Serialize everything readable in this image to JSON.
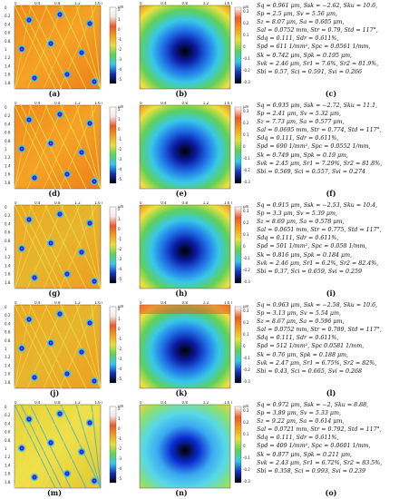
{
  "panels": [
    {
      "left_caption": "(a)",
      "mid_caption": "(b)",
      "right_caption": "(c)",
      "params": [
        "Sq = 0.961 μm, Ssk = −2.62, Sku = 10.6,",
        "Sp = 2.5 μm, Sv = 5.56 μm,",
        "Sz = 8.07 μm, Sa = 0.605 μm,",
        "Sal = 0.0752 mm, Str = 0.79, Std = 117°,",
        "Sdq = 0.111, Sdr = 0.611%,",
        "Spd = 611 1/mm², Spc = 0.0561 1/mm,",
        "Sk = 0.742 μm, Spk = 0.195 μm,",
        "Svk = 2.46 μm, Sr1 = 7.6%, Sr2 = 81.9%,",
        "Sbi = 0.57, Sci = 0.591, Svi = 0.266"
      ]
    },
    {
      "left_caption": "(d)",
      "mid_caption": "(e)",
      "right_caption": "(f)",
      "params": [
        "Sq = 0.935 μm, Ssk = −2.72, Sku = 11.1,",
        "Sp = 2.41 μm, Sv = 5.32 μm,",
        "Sz = 7.73 μm, Sa = 0.577 μm,",
        "Sal = 0.0695 mm, Str = 0.774, Std = 117°,",
        "Sdq = 0.111, Sdr = 0.611%,",
        "Spd = 690 1/mm², Spc = 0.0552 1/mm,",
        "Sk = 0.749 μm, Spk = 0.19 μm,",
        "Svk = 2.45 μm, Sr1 = 7.29%, Sr2 = 81.8%,",
        "Sbi = 0.569, Sci = 0.557, Svi = 0.274"
      ]
    },
    {
      "left_caption": "(g)",
      "mid_caption": "(h)",
      "right_caption": "(i)",
      "params": [
        "Sq = 0.915 μm, Ssk = −2.53, Sku = 10.4,",
        "Sp = 3.3 μm, Sv = 5.39 μm,",
        "Sz = 8.69 μm, Sa = 0.578 μm,",
        "Sal = 0.0651 mm, Str = 0.775, Std = 117°,",
        "Sdq = 0.111, Sdr = 0.611%,",
        "Spd = 501 1/mm², Spc = 0.058 1/mm,",
        "Sk = 0.816 μm, Spk = 0.184 μm,",
        "Svk = 2.46 μm, Sr1 = 6.2%, Sr2 = 82.4%,",
        "Sbi = 0.37, Sci = 0.659, Svi = 0.259"
      ]
    },
    {
      "left_caption": "(j)",
      "mid_caption": "(k)",
      "right_caption": "(l)",
      "params": [
        "Sq = 0.963 μm, Ssk = −2.58, Sku = 10.6,",
        "Sp = 3.13 μm, Sv = 5.54 μm,",
        "Sz = 8.67 μm, Sa = 0.596 μm,",
        "Sal = 0.0752 mm, Str = 0.789, Std = 117°,",
        "Sdq = 0.111, Sdr = 0.611%,",
        "Spd = 512 1/mm², Spc 0.0581 1/mm,",
        "Sk = 0.76 μm, Spk = 0.188 μm,",
        "Svk = 2.47 μm, Sr1 = 6.75%, Sr2 = 82%,",
        "Sbi = 0.43, Sci = 0.665, Svi = 0.268"
      ]
    },
    {
      "left_caption": "(m)",
      "mid_caption": "(n)",
      "right_caption": "(o)",
      "params": [
        "Sq = 0.972 μm, Ssk = −2, Sku = 8.88,",
        "Sp = 3.89 μm, Sv = 5.33 μm,",
        "Sz = 9.22 μm, Sa = 0.614 μm,",
        "Sal = 0.0721 mm, Str = 0.792, Std = 117°,",
        "Sdq = 0.111, Sdr = 0.611%,",
        "Spd = 409 1/mm², Spc = 0.0601 1/mm,",
        "Sk = 0.877 μm, Spk = 0.211 μm,",
        "Svk = 2.43 μm, Sr1 = 6.72%, Sr2 = 83.5%,",
        "Sbi = 0.358, Sci = 0.993, Svi = 0.239"
      ]
    }
  ],
  "axis": {
    "x_ticks": [
      "0",
      "0.4",
      "0.8",
      "1.2",
      "1.6 mm"
    ],
    "y_ticks": [
      "0",
      "0.2",
      "0.4",
      "0.6",
      "0.8",
      "1",
      "1.2",
      "1.4",
      "1.6",
      "1.8"
    ],
    "y_unit": "mm",
    "z_unit": "μm"
  },
  "colors": {
    "orange": "#f0901e",
    "yellow": "#e8d83a",
    "red": "#e0351a",
    "blue": "#1730b8",
    "black": "#000000",
    "cyan": "#38c8e8",
    "green": "#5fd05a"
  }
}
